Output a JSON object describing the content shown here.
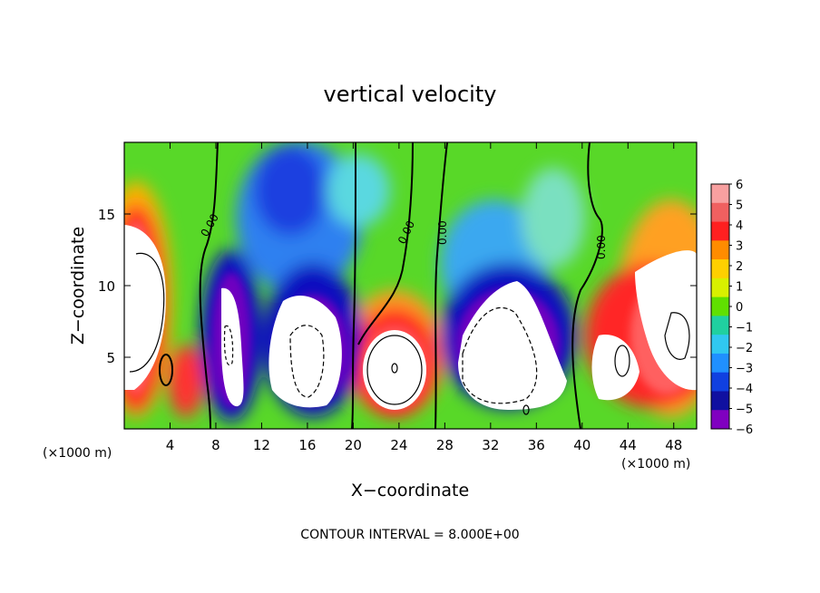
{
  "chart_data": {
    "type": "heatmap",
    "title": "vertical velocity",
    "xlabel": "X−coordinate",
    "ylabel": "Z−coordinate",
    "x_unit_left": "(×1000 m)",
    "x_unit_right": "(×1000 m)",
    "footer": "CONTOUR INTERVAL = 8.000E+00",
    "xlim": [
      0,
      50
    ],
    "ylim": [
      0,
      20
    ],
    "x_ticks": [
      4,
      8,
      12,
      16,
      20,
      24,
      28,
      32,
      36,
      40,
      44,
      48
    ],
    "y_ticks": [
      5,
      10,
      15
    ],
    "colorbar": {
      "range": [
        -6,
        6
      ],
      "labels": [
        "6",
        "5",
        "4",
        "3",
        "2",
        "1",
        "0",
        "−1",
        "−2",
        "−3",
        "−4",
        "−5",
        "−6"
      ],
      "values": [
        6,
        5,
        4,
        3,
        2,
        1,
        0,
        -1,
        -2,
        -3,
        -4,
        -5,
        -6
      ],
      "colors": [
        "#f8a0a0",
        "#f06060",
        "#ff2020",
        "#ff8c00",
        "#ffd000",
        "#d8f000",
        "#60e000",
        "#20d0a0",
        "#30c8f0",
        "#2090ff",
        "#1040e0",
        "#1010a0",
        "#8000c0"
      ]
    },
    "zero_contour_labels": [
      "0.00",
      "0.00",
      "0.00",
      "0.00"
    ],
    "zero_contour_x": [
      6.5,
      19.2,
      26.5,
      40.0
    ],
    "features": [
      {
        "kind": "updraft",
        "x": 2.5,
        "z": 8.5,
        "value": 12
      },
      {
        "kind": "downdraft",
        "x": 9.5,
        "z": 7,
        "value": -12
      },
      {
        "kind": "downdraft",
        "x": 15.5,
        "z": 5,
        "value": -12
      },
      {
        "kind": "updraft",
        "x": 23.5,
        "z": 4.2,
        "value": 12
      },
      {
        "kind": "downdraft",
        "x": 33.5,
        "z": 5.5,
        "value": -12
      },
      {
        "kind": "updraft",
        "x": 43.5,
        "z": 4,
        "value": 10
      },
      {
        "kind": "updraft",
        "x": 48,
        "z": 7.5,
        "value": 12
      }
    ]
  }
}
